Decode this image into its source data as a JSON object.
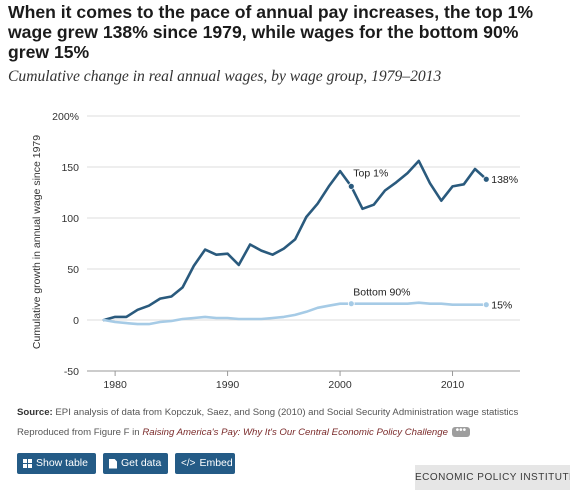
{
  "title": "When it comes to the pace of annual pay increases, the top 1% wage grew 138% since 1979, while wages for the bottom 90% grew 15%",
  "subtitle": "Cumulative change in real annual wages, by wage group, 1979–2013",
  "footer": {
    "source_label": "Source:",
    "source_text": " EPI analysis of data from Kopczuk, Saez, and Song (2010) and Social Security Administration wage statistics",
    "reproduced_prefix": "Reproduced from Figure F in ",
    "publication": "Raising America's Pay: Why It's Our Central Economic Policy Challenge",
    "more_label": "•••"
  },
  "buttons": {
    "show_table": "Show table",
    "get_data": "Get data",
    "embed": "Embed",
    "embed_icon": "</>"
  },
  "brand": "ECONOMIC POLICY INSTITUTE",
  "colors": {
    "top1": "#2a5a7d",
    "bottom90": "#a6cbe6",
    "grid": "#dddddd",
    "button": "#245b86"
  },
  "chart_data": {
    "type": "line",
    "title": "",
    "xlabel": "",
    "ylabel": "Cumulative growth in annual wage since 1979",
    "xlim": [
      1979,
      2013
    ],
    "ylim": [
      -50,
      200
    ],
    "yticks": [
      -50,
      0,
      50,
      100,
      150,
      200
    ],
    "ytick_labels": [
      "-50",
      "0",
      "50",
      "100",
      "150",
      "200%"
    ],
    "xticks": [
      1980,
      1990,
      2000,
      2010
    ],
    "grid": "horizontal",
    "legend": "direct labels",
    "x": [
      1979,
      1980,
      1981,
      1982,
      1983,
      1984,
      1985,
      1986,
      1987,
      1988,
      1989,
      1990,
      1991,
      1992,
      1993,
      1994,
      1995,
      1996,
      1997,
      1998,
      1999,
      2000,
      2001,
      2002,
      2003,
      2004,
      2005,
      2006,
      2007,
      2008,
      2009,
      2010,
      2011,
      2012,
      2013
    ],
    "series": [
      {
        "name": "Top 1%",
        "end_label": "138%",
        "values": [
          0,
          3,
          3,
          10,
          14,
          21,
          23,
          32,
          53,
          69,
          64,
          65,
          54,
          74,
          68,
          64,
          70,
          79,
          101,
          114,
          131,
          146,
          131,
          109,
          113,
          127,
          135,
          144,
          156,
          134,
          117,
          131,
          133,
          148,
          138
        ]
      },
      {
        "name": "Bottom 90%",
        "end_label": "15%",
        "values": [
          0,
          -2,
          -3,
          -4,
          -4,
          -2,
          -1,
          1,
          2,
          3,
          2,
          2,
          1,
          1,
          1,
          2,
          3,
          5,
          8,
          12,
          14,
          16,
          16,
          16,
          16,
          16,
          16,
          16,
          17,
          16,
          16,
          15,
          15,
          15,
          15
        ]
      }
    ],
    "highlight_x": [
      2001,
      2013
    ]
  }
}
